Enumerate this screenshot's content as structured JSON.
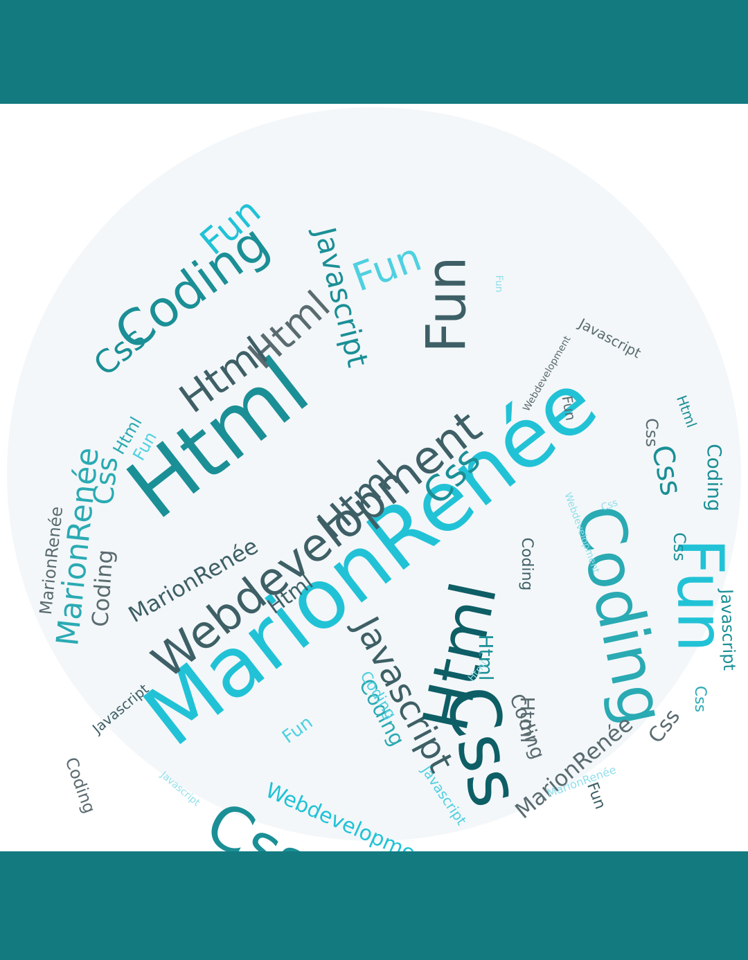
{
  "colors": {
    "band": "#137a80",
    "palette": [
      "#0e5e66",
      "#1b8f96",
      "#2aaab3",
      "#21c2d6",
      "#4fd0e0",
      "#8fdfea",
      "#5a6b70",
      "#3e5f66"
    ]
  },
  "words": [
    {
      "text": "MarionRenée",
      "c": "#21c2d6"
    },
    {
      "text": "Webdevelopment",
      "c": "#3e5f66"
    },
    {
      "text": "Html",
      "c": "#1b8f96"
    },
    {
      "text": "Coding",
      "c": "#2aaab3"
    },
    {
      "text": "Fun",
      "c": "#21c2d6"
    },
    {
      "text": "Css",
      "c": "#0e5e66"
    },
    {
      "text": "Css",
      "c": "#1b8f96"
    },
    {
      "text": "Javascript",
      "c": "#3e5f66"
    },
    {
      "text": "Html",
      "c": "#0e5e66"
    },
    {
      "text": "Coding",
      "c": "#1b8f96"
    },
    {
      "text": "Fun",
      "c": "#3e5f66"
    },
    {
      "text": "Html",
      "c": "#5a6b70"
    },
    {
      "text": "Html",
      "c": "#3e5f66"
    },
    {
      "text": "Html",
      "c": "#3e5f66"
    },
    {
      "text": "Webdevelopment",
      "c": "#21c2d6"
    },
    {
      "text": "Webdevelopment",
      "c": "#1b8f96"
    },
    {
      "text": "Javascript",
      "c": "#1b8f96"
    },
    {
      "text": "Fun",
      "c": "#21c2d6"
    },
    {
      "text": "Fun",
      "c": "#4fd0e0"
    },
    {
      "text": "Coding",
      "c": "#1b8f96"
    },
    {
      "text": "Css",
      "c": "#1b8f96"
    },
    {
      "text": "MarionRenée",
      "c": "#3e5f66"
    },
    {
      "text": "MarionRenée",
      "c": "#2aaab3"
    },
    {
      "text": "MarionRenée",
      "c": "#5a6b70"
    },
    {
      "text": "Coding",
      "c": "#5a6b70"
    },
    {
      "text": "Coding",
      "c": "#2aaab3"
    },
    {
      "text": "Css",
      "c": "#1b8f96"
    },
    {
      "text": "Css",
      "c": "#1b8f96"
    },
    {
      "text": "Javascript",
      "c": "#5a6b70"
    },
    {
      "text": "Javascript",
      "c": "#1b8f96"
    },
    {
      "text": "Fun",
      "c": "#5a6b70"
    },
    {
      "text": "Fun",
      "c": "#21c2d6"
    },
    {
      "text": "Html",
      "c": "#5a6b70"
    },
    {
      "text": "Html",
      "c": "#1b8f96"
    },
    {
      "text": "Css",
      "c": "#5a6b70"
    },
    {
      "text": "Coding",
      "c": "#5a6b70"
    },
    {
      "text": "Coding",
      "c": "#5a6b70"
    },
    {
      "text": "Html",
      "c": "#3e5f66"
    },
    {
      "text": "MarionRenée",
      "c": "#5a6b70"
    },
    {
      "text": "Css",
      "c": "#2aaab3"
    },
    {
      "text": "Fun",
      "c": "#4fd0e0"
    },
    {
      "text": "Fun",
      "c": "#3e5f66"
    },
    {
      "text": "Coding",
      "c": "#4fd0e0"
    },
    {
      "text": "Css",
      "c": "#1b8f96"
    },
    {
      "text": "Javascript",
      "c": "#3e5f66"
    },
    {
      "text": "Html",
      "c": "#2aaab3"
    },
    {
      "text": "Css",
      "c": "#5a6b70"
    },
    {
      "text": "Fun",
      "c": "#4fd0e0"
    },
    {
      "text": "Html",
      "c": "#1b8f96"
    },
    {
      "text": "Coding",
      "c": "#3e5f66"
    },
    {
      "text": "Css",
      "c": "#2aaab3"
    },
    {
      "text": "Webdevelopment",
      "c": "#5a6b70"
    },
    {
      "text": "Javascript",
      "c": "#4fd0e0"
    },
    {
      "text": "Fun",
      "c": "#8fdfea"
    },
    {
      "text": "Html",
      "c": "#8fdfea"
    },
    {
      "text": "Coding",
      "c": "#8fdfea"
    },
    {
      "text": "Css",
      "c": "#8fdfea"
    },
    {
      "text": "MarionRenée",
      "c": "#8fdfea"
    },
    {
      "text": "Javascript",
      "c": "#8fdfea"
    },
    {
      "text": "Webdevelopment",
      "c": "#8fdfea"
    }
  ]
}
